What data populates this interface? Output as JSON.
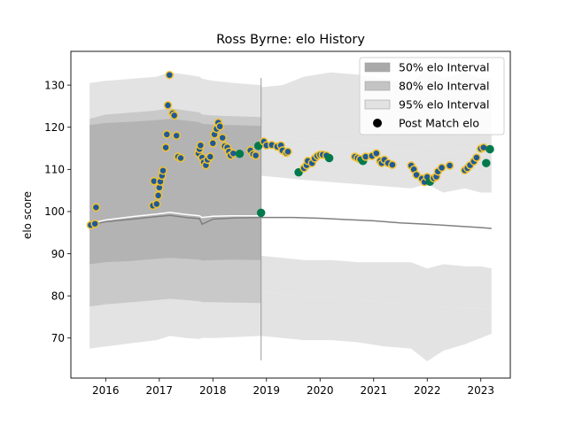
{
  "chart_data": {
    "type": "scatter",
    "title": "Ross Byrne: elo History",
    "xlabel": "",
    "ylabel": "elo score",
    "xlim": [
      2015.35,
      2023.55
    ],
    "ylim": [
      60.5,
      138
    ],
    "x_ticks": [
      2016,
      2017,
      2018,
      2019,
      2020,
      2021,
      2022,
      2023
    ],
    "y_ticks": [
      70,
      80,
      90,
      100,
      110,
      120,
      130
    ],
    "grid": false,
    "legend_position": "top-right",
    "legend": [
      {
        "label": "50% elo Interval",
        "kind": "patch",
        "color": "#a9a9a9"
      },
      {
        "label": "80% elo Interval",
        "kind": "patch",
        "color": "#c4c4c4"
      },
      {
        "label": "95% elo Interval",
        "kind": "patch",
        "color": "#e2e2e2"
      },
      {
        "label": "Post Match elo",
        "kind": "marker",
        "color": "#000000"
      }
    ],
    "colors": {
      "interval_50": "#b3b3b3",
      "interval_80": "#c9c9c9",
      "interval_95": "#e3e3e3",
      "median_line": "#808080",
      "mean_line": "#ffffff",
      "point_fill_blue": "#1f5a96",
      "point_edge_gold": "#f2c230",
      "point_green": "#007a4d"
    },
    "interval_bands": {
      "x": [
        2015.7,
        2016.0,
        2016.5,
        2016.95,
        2017.2,
        2017.5,
        2017.75,
        2017.8,
        2018.0,
        2018.4,
        2018.9
      ],
      "center": [
        97,
        97.8,
        98.3,
        98.8,
        99.0,
        98.6,
        98.4,
        97.8,
        98.3,
        98.6,
        98.5
      ],
      "p50_low": [
        87.5,
        88.0,
        88.3,
        88.8,
        89.0,
        88.8,
        88.6,
        88.4,
        88.5,
        88.6,
        88.5
      ],
      "p50_high": [
        120.5,
        121.0,
        121.3,
        121.7,
        122.0,
        121.6,
        121.2,
        120.8,
        120.6,
        120.5,
        120.3
      ],
      "p80_low": [
        77.5,
        78.0,
        78.5,
        79.0,
        79.3,
        79.0,
        78.7,
        78.5,
        78.5,
        78.4,
        78.3
      ],
      "p80_high": [
        122.0,
        123.0,
        123.5,
        124.0,
        124.5,
        124.0,
        123.5,
        123.0,
        122.8,
        122.6,
        122.4
      ],
      "p95_low": [
        67.5,
        68.0,
        68.8,
        69.5,
        70.5,
        70.0,
        69.8,
        70.0,
        70.0,
        70.2,
        70.5
      ],
      "p95_high": [
        130.5,
        131.0,
        131.5,
        132.0,
        133.0,
        132.5,
        132.0,
        131.5,
        131.0,
        130.5,
        130.0
      ]
    },
    "tail_bands": {
      "x": [
        2018.9,
        2019.3,
        2019.7,
        2020.2,
        2020.7,
        2021.2,
        2021.7,
        2022.0,
        2022.3,
        2022.7,
        2023.0,
        2023.2
      ],
      "p95_high": [
        129.5,
        130,
        132,
        133,
        132.5,
        131.5,
        130.5,
        134,
        131.5,
        133.0,
        131.5,
        131.5
      ],
      "p80_high": [
        117.5,
        118,
        117,
        116.5,
        116,
        115,
        114,
        116,
        113.5,
        114.5,
        113.5,
        113.5
      ],
      "p50_high": [
        108.5,
        108,
        107.5,
        107,
        106.5,
        106,
        105.5,
        106.5,
        104.5,
        105.5,
        104.5,
        104.5
      ],
      "p50_low": [
        89.5,
        89,
        88.5,
        88.5,
        88.0,
        88.0,
        88.0,
        86.5,
        87.5,
        87.0,
        87.0,
        86.5
      ],
      "p80_low": [
        81,
        80.5,
        80,
        79.5,
        79.0,
        78.5,
        78.0,
        76.0,
        77.5,
        77.0,
        77.0,
        76.5
      ],
      "p95_low": [
        70.5,
        70.0,
        69.5,
        69.5,
        69.0,
        68.0,
        67.5,
        64.5,
        67.0,
        68.5,
        70.0,
        71.0
      ]
    },
    "median_line": {
      "x": [
        2015.7,
        2016.0,
        2016.5,
        2016.95,
        2017.2,
        2017.5,
        2017.75,
        2017.8,
        2018.0,
        2018.4,
        2018.9,
        2019.5,
        2020.0,
        2020.5,
        2021.0,
        2021.5,
        2022.0,
        2022.5,
        2023.0,
        2023.2
      ],
      "y": [
        96.8,
        97.6,
        98.2,
        98.8,
        99.1,
        98.6,
        98.3,
        97.0,
        98.2,
        98.5,
        98.6,
        98.6,
        98.4,
        98.1,
        97.8,
        97.3,
        97.0,
        96.6,
        96.2,
        96.0
      ]
    },
    "mean_line": {
      "x": [
        2015.7,
        2016.0,
        2016.5,
        2016.95,
        2017.2,
        2017.5,
        2017.75,
        2017.8,
        2018.0,
        2018.4,
        2018.9
      ],
      "y": [
        97.2,
        98.0,
        98.8,
        99.4,
        99.8,
        99.3,
        99.0,
        98.6,
        98.9,
        99.0,
        99.0
      ]
    },
    "series": [
      {
        "name": "Post Match elo",
        "points": [
          {
            "x": 2015.72,
            "y": 96.8,
            "team": "blue"
          },
          {
            "x": 2015.8,
            "y": 97.1,
            "team": "blue"
          },
          {
            "x": 2015.82,
            "y": 101.0,
            "team": "blue"
          },
          {
            "x": 2016.88,
            "y": 101.4,
            "team": "blue"
          },
          {
            "x": 2016.9,
            "y": 107.2,
            "team": "blue"
          },
          {
            "x": 2016.95,
            "y": 101.8,
            "team": "blue"
          },
          {
            "x": 2016.98,
            "y": 103.8,
            "team": "blue"
          },
          {
            "x": 2017.0,
            "y": 105.7,
            "team": "blue"
          },
          {
            "x": 2017.02,
            "y": 107.1,
            "team": "blue"
          },
          {
            "x": 2017.05,
            "y": 108.5,
            "team": "blue"
          },
          {
            "x": 2017.07,
            "y": 109.7,
            "team": "blue"
          },
          {
            "x": 2017.12,
            "y": 115.2,
            "team": "blue"
          },
          {
            "x": 2017.14,
            "y": 118.3,
            "team": "blue"
          },
          {
            "x": 2017.16,
            "y": 125.2,
            "team": "blue"
          },
          {
            "x": 2017.19,
            "y": 132.4,
            "team": "blue"
          },
          {
            "x": 2017.25,
            "y": 123.3,
            "team": "blue"
          },
          {
            "x": 2017.28,
            "y": 122.8,
            "team": "blue"
          },
          {
            "x": 2017.32,
            "y": 118.0,
            "team": "blue"
          },
          {
            "x": 2017.35,
            "y": 113.0,
            "team": "blue"
          },
          {
            "x": 2017.4,
            "y": 112.7,
            "team": "blue"
          },
          {
            "x": 2017.73,
            "y": 113.8,
            "team": "blue"
          },
          {
            "x": 2017.75,
            "y": 114.8,
            "team": "blue"
          },
          {
            "x": 2017.77,
            "y": 115.7,
            "team": "blue"
          },
          {
            "x": 2017.8,
            "y": 112.8,
            "team": "blue"
          },
          {
            "x": 2017.83,
            "y": 111.7,
            "team": "blue"
          },
          {
            "x": 2017.87,
            "y": 111.0,
            "team": "blue"
          },
          {
            "x": 2017.9,
            "y": 112.3,
            "team": "blue"
          },
          {
            "x": 2017.95,
            "y": 113.0,
            "team": "blue"
          },
          {
            "x": 2018.0,
            "y": 116.2,
            "team": "blue"
          },
          {
            "x": 2018.03,
            "y": 118.3,
            "team": "blue"
          },
          {
            "x": 2018.07,
            "y": 119.6,
            "team": "blue"
          },
          {
            "x": 2018.1,
            "y": 121.1,
            "team": "blue"
          },
          {
            "x": 2018.13,
            "y": 120.2,
            "team": "blue"
          },
          {
            "x": 2018.18,
            "y": 117.5,
            "team": "blue"
          },
          {
            "x": 2018.22,
            "y": 115.5,
            "team": "blue"
          },
          {
            "x": 2018.27,
            "y": 115.2,
            "team": "blue"
          },
          {
            "x": 2018.3,
            "y": 114.2,
            "team": "blue"
          },
          {
            "x": 2018.33,
            "y": 113.3,
            "team": "blue"
          },
          {
            "x": 2018.38,
            "y": 113.8,
            "team": "blue"
          },
          {
            "x": 2018.5,
            "y": 113.7,
            "team": "green"
          },
          {
            "x": 2018.7,
            "y": 114.5,
            "team": "blue"
          },
          {
            "x": 2018.75,
            "y": 113.6,
            "team": "blue"
          },
          {
            "x": 2018.8,
            "y": 113.3,
            "team": "blue"
          },
          {
            "x": 2018.85,
            "y": 115.6,
            "team": "green"
          },
          {
            "x": 2018.9,
            "y": 99.7,
            "team": "green"
          },
          {
            "x": 2018.95,
            "y": 116.6,
            "team": "blue"
          },
          {
            "x": 2019.0,
            "y": 115.7,
            "team": "blue"
          },
          {
            "x": 2019.1,
            "y": 115.8,
            "team": "blue"
          },
          {
            "x": 2019.2,
            "y": 115.4,
            "team": "blue"
          },
          {
            "x": 2019.27,
            "y": 115.7,
            "team": "blue"
          },
          {
            "x": 2019.3,
            "y": 114.5,
            "team": "blue"
          },
          {
            "x": 2019.37,
            "y": 113.9,
            "team": "blue"
          },
          {
            "x": 2019.4,
            "y": 114.2,
            "team": "blue"
          },
          {
            "x": 2019.6,
            "y": 109.3,
            "team": "green"
          },
          {
            "x": 2019.7,
            "y": 110.3,
            "team": "blue"
          },
          {
            "x": 2019.75,
            "y": 111.0,
            "team": "blue"
          },
          {
            "x": 2019.77,
            "y": 112.0,
            "team": "blue"
          },
          {
            "x": 2019.85,
            "y": 111.5,
            "team": "blue"
          },
          {
            "x": 2019.9,
            "y": 112.6,
            "team": "blue"
          },
          {
            "x": 2019.95,
            "y": 113.2,
            "team": "blue"
          },
          {
            "x": 2020.0,
            "y": 113.5,
            "team": "blue"
          },
          {
            "x": 2020.05,
            "y": 113.5,
            "team": "blue"
          },
          {
            "x": 2020.12,
            "y": 113.3,
            "team": "blue"
          },
          {
            "x": 2020.17,
            "y": 112.7,
            "team": "green"
          },
          {
            "x": 2020.65,
            "y": 113.0,
            "team": "blue"
          },
          {
            "x": 2020.7,
            "y": 112.7,
            "team": "blue"
          },
          {
            "x": 2020.75,
            "y": 112.4,
            "team": "blue"
          },
          {
            "x": 2020.8,
            "y": 112.0,
            "team": "green"
          },
          {
            "x": 2020.85,
            "y": 113.0,
            "team": "blue"
          },
          {
            "x": 2020.97,
            "y": 113.2,
            "team": "blue"
          },
          {
            "x": 2021.05,
            "y": 113.8,
            "team": "blue"
          },
          {
            "x": 2021.12,
            "y": 112.0,
            "team": "blue"
          },
          {
            "x": 2021.15,
            "y": 111.5,
            "team": "blue"
          },
          {
            "x": 2021.2,
            "y": 112.3,
            "team": "blue"
          },
          {
            "x": 2021.27,
            "y": 111.5,
            "team": "blue"
          },
          {
            "x": 2021.35,
            "y": 111.1,
            "team": "blue"
          },
          {
            "x": 2021.7,
            "y": 110.9,
            "team": "blue"
          },
          {
            "x": 2021.75,
            "y": 110.0,
            "team": "blue"
          },
          {
            "x": 2021.8,
            "y": 108.7,
            "team": "blue"
          },
          {
            "x": 2021.9,
            "y": 107.8,
            "team": "blue"
          },
          {
            "x": 2021.95,
            "y": 107.0,
            "team": "blue"
          },
          {
            "x": 2022.0,
            "y": 108.2,
            "team": "blue"
          },
          {
            "x": 2022.05,
            "y": 107.1,
            "team": "green"
          },
          {
            "x": 2022.12,
            "y": 107.9,
            "team": "blue"
          },
          {
            "x": 2022.17,
            "y": 108.3,
            "team": "blue"
          },
          {
            "x": 2022.2,
            "y": 109.5,
            "team": "blue"
          },
          {
            "x": 2022.27,
            "y": 110.4,
            "team": "blue"
          },
          {
            "x": 2022.42,
            "y": 110.9,
            "team": "blue"
          },
          {
            "x": 2022.7,
            "y": 109.8,
            "team": "blue"
          },
          {
            "x": 2022.75,
            "y": 110.3,
            "team": "blue"
          },
          {
            "x": 2022.8,
            "y": 111.0,
            "team": "blue"
          },
          {
            "x": 2022.87,
            "y": 111.9,
            "team": "blue"
          },
          {
            "x": 2022.92,
            "y": 112.8,
            "team": "blue"
          },
          {
            "x": 2023.0,
            "y": 114.9,
            "team": "blue"
          },
          {
            "x": 2023.05,
            "y": 115.2,
            "team": "blue"
          },
          {
            "x": 2023.1,
            "y": 111.5,
            "team": "green"
          },
          {
            "x": 2023.17,
            "y": 114.8,
            "team": "green"
          }
        ]
      }
    ]
  }
}
